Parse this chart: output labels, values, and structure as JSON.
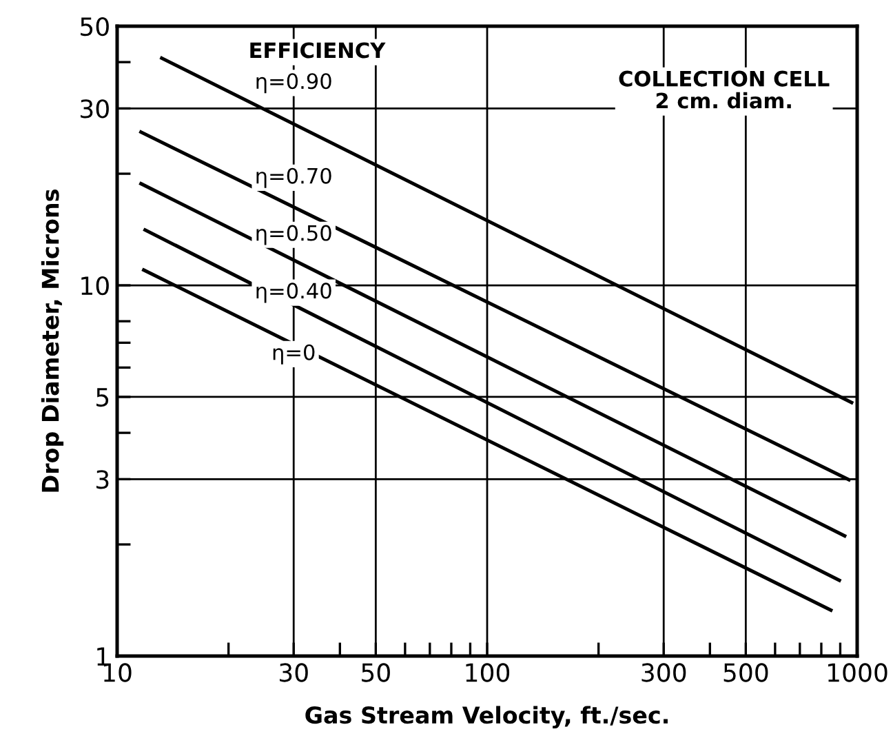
{
  "chart_data": {
    "type": "line",
    "xlabel": "Gas Stream Velocity, ft./sec.",
    "ylabel": "Drop Diameter, Microns",
    "log": "xy",
    "grid": true,
    "marker": "none",
    "line_style": "solid",
    "xlim": [
      10,
      1000
    ],
    "xticks": [
      10,
      30,
      50,
      100,
      300,
      500,
      1000,
      {
        "value": 20,
        "label": null
      },
      {
        "value": 40,
        "label": null
      },
      {
        "value": 60,
        "label": null
      },
      {
        "value": 70,
        "label": null
      },
      {
        "value": 80,
        "label": null
      },
      {
        "value": 90,
        "label": null
      },
      {
        "value": 200,
        "label": null
      },
      {
        "value": 400,
        "label": null
      },
      {
        "value": 600,
        "label": null
      },
      {
        "value": 700,
        "label": null
      },
      {
        "value": 800,
        "label": null
      },
      {
        "value": 900,
        "label": null
      }
    ],
    "ylim": [
      1,
      50
    ],
    "yticks": [
      1,
      3,
      5,
      10,
      30,
      50,
      {
        "value": 2,
        "label": null
      },
      {
        "value": 4,
        "label": null
      },
      {
        "value": 6,
        "label": null
      },
      {
        "value": 7,
        "label": null
      },
      {
        "value": 8,
        "label": null
      },
      {
        "value": 20,
        "label": null
      },
      {
        "value": 40,
        "label": null
      }
    ],
    "series": [
      {
        "name": "η=0.90",
        "color": "#000000",
        "x": [
          13.2,
          966
        ],
        "values": [
          41,
          4.83
        ]
      },
      {
        "name": "η=0.70",
        "color": "#000000",
        "x": [
          11.6,
          950
        ],
        "values": [
          25.9,
          2.99
        ]
      },
      {
        "name": "η=0.50",
        "color": "#000000",
        "x": [
          11.6,
          925
        ],
        "values": [
          18.8,
          2.11
        ]
      },
      {
        "name": "η=0.40",
        "color": "#000000",
        "x": [
          11.9,
          895
        ],
        "values": [
          14.1,
          1.6
        ]
      },
      {
        "name": "η=0",
        "color": "#000000",
        "x": [
          11.8,
          849
        ],
        "values": [
          11,
          1.33
        ]
      }
    ],
    "annotations": [
      "EFFICIENCY",
      "COLLECTION CELL\n2 cm. diam."
    ]
  }
}
